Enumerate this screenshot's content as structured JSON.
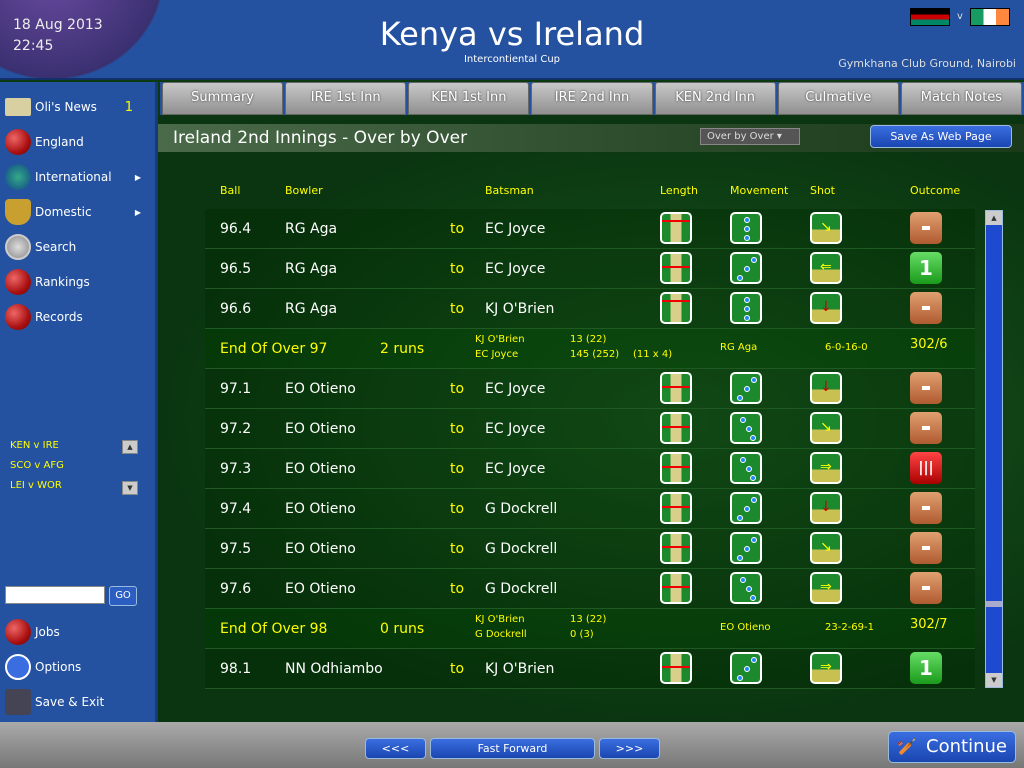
{
  "header": {
    "date": "18 Aug 2013",
    "time": "22:45",
    "title": "Kenya vs Ireland",
    "subtitle": "Intercontiental Cup",
    "venue": "Gymkhana Club Ground, Nairobi",
    "vs": "v"
  },
  "sidebar": {
    "items": [
      {
        "label": "Oli's News",
        "icon": "envelope-icon",
        "count": "1"
      },
      {
        "label": "England",
        "icon": "cricket-ball-icon"
      },
      {
        "label": "International",
        "icon": "globe-icon",
        "submenu": true
      },
      {
        "label": "Domestic",
        "icon": "trophy-icon",
        "submenu": true
      },
      {
        "label": "Search",
        "icon": "magnifier-icon"
      },
      {
        "label": "Rankings",
        "icon": "cricket-ball-icon"
      },
      {
        "label": "Records",
        "icon": "cricket-ball-icon"
      }
    ],
    "fixtures": [
      "KEN v IRE",
      "SCO v AFG",
      "LEI v WOR"
    ],
    "search_value": "",
    "go_label": "GO",
    "bottom_items": [
      {
        "label": "Jobs",
        "icon": "cricket-ball-icon"
      },
      {
        "label": "Options",
        "icon": "checkmark-icon"
      },
      {
        "label": "Save & Exit",
        "icon": "floppy-disk-icon"
      }
    ]
  },
  "tabs": [
    "Summary",
    "IRE 1st Inn",
    "KEN 1st Inn",
    "IRE 2nd Inn",
    "KEN 2nd Inn",
    "Culmative",
    "Match Notes"
  ],
  "page": {
    "title": "Ireland 2nd Innings - Over by Over",
    "view_select": "Over by Over",
    "save_label": "Save As Web Page"
  },
  "columns": {
    "ball": "Ball",
    "bowler": "Bowler",
    "batsman": "Batsman",
    "length": "Length",
    "movement": "Movement",
    "shot": "Shot",
    "outcome": "Outcome"
  },
  "rows": [
    {
      "type": "ball",
      "ball": "96.4",
      "bowler": "RG Aga",
      "to": "to",
      "batsman": "EC Joyce",
      "length": "full",
      "movement": "straight",
      "shot": "down-right",
      "outcome": "dot"
    },
    {
      "type": "ball",
      "ball": "96.5",
      "bowler": "RG Aga",
      "to": "to",
      "batsman": "EC Joyce",
      "length": "good",
      "movement": "diagonal",
      "shot": "left",
      "outcome": "1"
    },
    {
      "type": "ball",
      "ball": "96.6",
      "bowler": "RG Aga",
      "to": "to",
      "batsman": "KJ O'Brien",
      "length": "full",
      "movement": "straight",
      "shot": "down",
      "outcome": "dot"
    },
    {
      "type": "summary",
      "label": "End Of Over 97",
      "runs": "2 runs",
      "bat1": "KJ O'Brien",
      "bat1_score": "13 (22)",
      "bat2": "EC Joyce",
      "bat2_score": "145 (252)",
      "bat2_extra": "(11 x 4)",
      "bowler": "RG Aga",
      "figures": "6-0-16-0",
      "total": "302/6"
    },
    {
      "type": "ball",
      "ball": "97.1",
      "bowler": "EO Otieno",
      "to": "to",
      "batsman": "EC Joyce",
      "length": "good",
      "movement": "diagonal",
      "shot": "down",
      "outcome": "dot"
    },
    {
      "type": "ball",
      "ball": "97.2",
      "bowler": "EO Otieno",
      "to": "to",
      "batsman": "EC Joyce",
      "length": "good",
      "movement": "zigzag",
      "shot": "down-right",
      "outcome": "dot"
    },
    {
      "type": "ball",
      "ball": "97.3",
      "bowler": "EO Otieno",
      "to": "to",
      "batsman": "EC Joyce",
      "length": "good",
      "movement": "zigzag",
      "shot": "right",
      "outcome": "wicket"
    },
    {
      "type": "ball",
      "ball": "97.4",
      "bowler": "EO Otieno",
      "to": "to",
      "batsman": "G Dockrell",
      "length": "good",
      "movement": "diagonal",
      "shot": "down",
      "outcome": "dot"
    },
    {
      "type": "ball",
      "ball": "97.5",
      "bowler": "EO Otieno",
      "to": "to",
      "batsman": "G Dockrell",
      "length": "good",
      "movement": "diagonal",
      "shot": "down-right",
      "outcome": "dot"
    },
    {
      "type": "ball",
      "ball": "97.6",
      "bowler": "EO Otieno",
      "to": "to",
      "batsman": "G Dockrell",
      "length": "good",
      "movement": "zigzag",
      "shot": "right",
      "outcome": "dot"
    },
    {
      "type": "summary",
      "label": "End Of Over 98",
      "runs": "0 runs",
      "bat1": "KJ O'Brien",
      "bat1_score": "13 (22)",
      "bat2": "G Dockrell",
      "bat2_score": "0 (3)",
      "bat2_extra": "",
      "bowler": "EO Otieno",
      "figures": "23-2-69-1",
      "total": "302/7"
    },
    {
      "type": "ball",
      "ball": "98.1",
      "bowler": "NN Odhiambo",
      "to": "to",
      "batsman": "KJ O'Brien",
      "length": "good",
      "movement": "diagonal",
      "shot": "right",
      "outcome": "1"
    }
  ],
  "footer": {
    "prev": "<<<",
    "fast_forward": "Fast Forward",
    "next": ">>>",
    "continue": "Continue"
  }
}
